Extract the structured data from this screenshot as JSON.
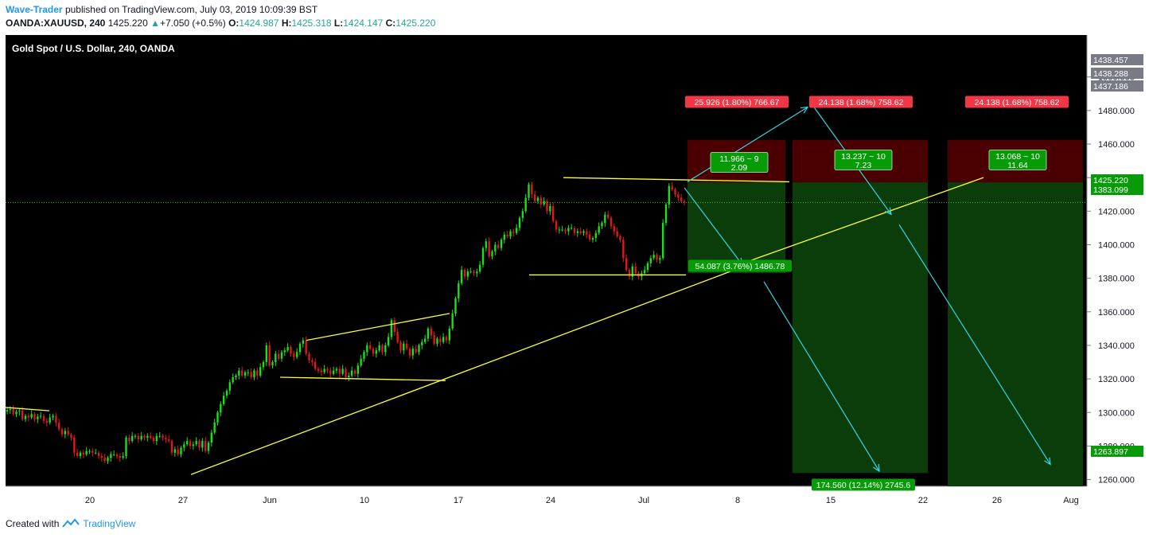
{
  "header": {
    "author": "Wave-Trader",
    "published_text": "published on TradingView.com, July 03, 2019 10:09:39 BST",
    "symbol": "OANDA:XAUUSD, 240",
    "last_price": "1425.220",
    "change": "+7.050 (+0.5%)",
    "open_label": "O:",
    "open": "1424.987",
    "high_label": "H:",
    "high": "1425.318",
    "low_label": "L:",
    "low": "1424.147",
    "close_label": "C:",
    "close": "1425.220"
  },
  "footer": {
    "created_with": "Created with",
    "brand": "TradingView"
  },
  "colors": {
    "background": "#000000",
    "up_candle": "#17e317",
    "down_candle": "#e31717",
    "trendline": "#ffff33",
    "projection": "#33d6e6",
    "stop_zone": "#4a0000",
    "target_zone": "#0b3d0b",
    "label_red": "#f23645",
    "label_green": "#089b08",
    "price_line": "#2fbf2f"
  },
  "chart_data": {
    "type": "candlestick",
    "title": "Gold Spot / U.S. Dollar, 240, OANDA",
    "x_labels": [
      "20",
      "27",
      "Jun",
      "10",
      "17",
      "24",
      "Jul",
      "8",
      "15",
      "22",
      "26",
      "Aug"
    ],
    "y_ticks": [
      "1260.000",
      "1280.000",
      "1300.000",
      "1320.000",
      "1340.000",
      "1360.000",
      "1380.000",
      "1400.000",
      "1420.000",
      "1440.000",
      "1460.000",
      "1480.000",
      "1500.000"
    ],
    "ylim": [
      1256,
      1525
    ],
    "price_scale_tags": [
      {
        "value": 1438.457,
        "text": "1438.457",
        "color": "#787b86"
      },
      {
        "value": 1438.288,
        "text": "1438.288",
        "color": "#787b86"
      },
      {
        "value": 1437.186,
        "text": "1437.186",
        "color": "#787b86"
      },
      {
        "value": 1425.22,
        "text": "1425.220",
        "color": "#089b08"
      },
      {
        "value": 1383.099,
        "text": "1383.099",
        "color": "#089b08"
      },
      {
        "value": 1263.897,
        "text": "1263.897",
        "color": "#089b08"
      }
    ],
    "current_price": 1425.22,
    "candles_close": [
      1301.5,
      1302,
      1299,
      1300.5,
      1301,
      1296,
      1298,
      1297,
      1299,
      1296,
      1297.5,
      1298,
      1295,
      1294,
      1297,
      1298,
      1294,
      1290,
      1287,
      1289,
      1287,
      1285,
      1276,
      1274,
      1276,
      1275,
      1277,
      1277,
      1276,
      1276,
      1274,
      1273,
      1271,
      1273,
      1275,
      1275,
      1274,
      1273,
      1274,
      1285,
      1283,
      1286,
      1286,
      1284,
      1286,
      1285,
      1286,
      1285,
      1283,
      1286,
      1286,
      1285,
      1284,
      1283,
      1276,
      1278,
      1275,
      1279,
      1281,
      1283,
      1280,
      1281,
      1283,
      1279,
      1283,
      1277,
      1282,
      1288,
      1294,
      1300,
      1305,
      1310,
      1313,
      1318,
      1321,
      1322,
      1325,
      1322,
      1324,
      1324,
      1321,
      1325,
      1322,
      1327,
      1330,
      1340,
      1328,
      1330,
      1335,
      1332,
      1336,
      1337,
      1339,
      1335,
      1333,
      1336,
      1341,
      1343,
      1335,
      1331,
      1330,
      1326,
      1325,
      1324,
      1326,
      1325,
      1323,
      1325,
      1326,
      1323,
      1326,
      1321,
      1322,
      1325,
      1323,
      1328,
      1332,
      1336,
      1340,
      1338,
      1335,
      1337,
      1340,
      1336,
      1340,
      1345,
      1355,
      1348,
      1342,
      1337,
      1341,
      1338,
      1334,
      1338,
      1336,
      1340,
      1342,
      1344,
      1350,
      1346,
      1341,
      1344,
      1342,
      1345,
      1343,
      1350,
      1359,
      1368,
      1377,
      1385,
      1381,
      1384,
      1384,
      1383,
      1384,
      1388,
      1398,
      1402,
      1393,
      1396,
      1400,
      1398,
      1403,
      1406,
      1405,
      1408,
      1407,
      1410,
      1416,
      1420,
      1428,
      1436,
      1430,
      1426,
      1428,
      1424,
      1426,
      1420,
      1423,
      1414,
      1409,
      1409,
      1409,
      1408,
      1410,
      1410,
      1407,
      1408,
      1407,
      1408,
      1406,
      1403,
      1404,
      1407,
      1411,
      1413,
      1418,
      1416,
      1411,
      1408,
      1405,
      1403,
      1392,
      1385,
      1381,
      1387,
      1383,
      1381,
      1383,
      1385,
      1389,
      1392,
      1394,
      1391,
      1392,
      1413,
      1424,
      1435,
      1433,
      1430,
      1428,
      1426,
      1425.2
    ]
  },
  "drawings": {
    "trade_labels": [
      {
        "text": "25.926 (1.80%) 766.67",
        "type": "stop"
      },
      {
        "text": "24.138 (1.68%) 758.62",
        "type": "stop"
      },
      {
        "text": "24.138 (1.68%) 758.62",
        "type": "stop"
      },
      {
        "text": "54.087 (3.76%) 1486.78",
        "type": "target"
      },
      {
        "text": "174.560 (12.14%) 2745.6",
        "type": "target"
      }
    ],
    "ratio_boxes": [
      {
        "line1": "11.966 ~ 9",
        "line2": "2.09"
      },
      {
        "line1": "13.237 ~ 10",
        "line2": "7.23"
      },
      {
        "line1": "13.068 ~ 10",
        "line2": "11.64"
      }
    ]
  }
}
